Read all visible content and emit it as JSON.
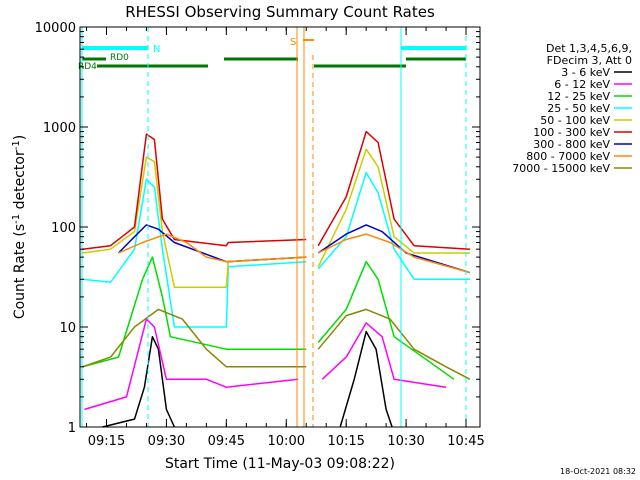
{
  "chart_data": {
    "type": "line",
    "title": "RHESSI Observing Summary Count Rates",
    "xlabel": "Start Time (11-May-03 09:08:22)",
    "ylabel": "Count Rate (s",
    "ylabel_sup1": "-1",
    "ylabel_mid": " detector",
    "ylabel_sup2": "-1",
    "ylabel_end": ")",
    "y_scale": "log",
    "ylim": [
      1,
      10000
    ],
    "xlim": [
      "09:08:22",
      "10:48:30"
    ],
    "x_ticks": [
      "09:15",
      "09:30",
      "09:45",
      "10:00",
      "10:15",
      "10:30",
      "10:45"
    ],
    "y_ticks": [
      "1",
      "10",
      "100",
      "1000",
      "10000"
    ],
    "legend": {
      "placement": "right",
      "header": [
        "Det 1,3,4,5,6,9,",
        "FDecim 3, Att 0"
      ],
      "entries": [
        {
          "label": "3 - 6 keV",
          "color": "#000000"
        },
        {
          "label": "6 - 12 keV",
          "color": "#ff00ff"
        },
        {
          "label": "12 - 25 keV",
          "color": "#00dd00"
        },
        {
          "label": "25 - 50 keV",
          "color": "#00ffff"
        },
        {
          "label": "50 - 100 keV",
          "color": "#cccc00"
        },
        {
          "label": "100 - 300 keV",
          "color": "#dd0000"
        },
        {
          "label": "300 - 800 keV",
          "color": "#0000cc"
        },
        {
          "label": "800 - 7000 keV",
          "color": "#ff8800"
        },
        {
          "label": "7000 - 15000 keV",
          "color": "#888800"
        }
      ]
    },
    "annotations": {
      "flags": [
        "N",
        "RD0",
        "RD4",
        "S"
      ],
      "footer": "18-Oct-2021 08:32"
    },
    "series": [
      {
        "color": "#000000",
        "points": [
          [
            "09:14:00",
            1
          ],
          [
            "09:22:00",
            1.2
          ],
          [
            "09:24:30",
            2.5
          ],
          [
            "09:26:30",
            8
          ],
          [
            "09:28:00",
            6
          ],
          [
            "09:30:00",
            1.5
          ],
          [
            "09:32:00",
            1
          ]
        ]
      },
      {
        "color": "#000000",
        "points": [
          [
            "10:13:30",
            1
          ],
          [
            "10:17:00",
            3
          ],
          [
            "10:20:00",
            9
          ],
          [
            "10:22:30",
            6
          ],
          [
            "10:25:00",
            1.5
          ],
          [
            "10:26:30",
            1
          ]
        ]
      },
      {
        "color": "#ff00ff",
        "points": [
          [
            "09:09:30",
            1.5
          ],
          [
            "09:20:00",
            2
          ],
          [
            "09:25:00",
            12
          ],
          [
            "09:27:00",
            10
          ],
          [
            "09:30:00",
            3
          ],
          [
            "09:40:00",
            3
          ],
          [
            "09:45:00",
            2.5
          ],
          [
            "10:03:00",
            3
          ]
        ]
      },
      {
        "color": "#ff00ff",
        "points": [
          [
            "10:09:00",
            3
          ],
          [
            "10:15:00",
            5
          ],
          [
            "10:20:00",
            11
          ],
          [
            "10:24:00",
            8
          ],
          [
            "10:27:00",
            3
          ],
          [
            "10:40:00",
            2.5
          ]
        ]
      },
      {
        "color": "#00dd00",
        "points": [
          [
            "09:09:00",
            4
          ],
          [
            "09:18:00",
            5
          ],
          [
            "09:24:00",
            30
          ],
          [
            "09:26:30",
            50
          ],
          [
            "09:29:00",
            20
          ],
          [
            "09:31:00",
            8
          ],
          [
            "09:45:00",
            6
          ],
          [
            "10:05:00",
            6
          ]
        ]
      },
      {
        "color": "#00dd00",
        "points": [
          [
            "10:08:00",
            7
          ],
          [
            "10:15:00",
            15
          ],
          [
            "10:20:00",
            45
          ],
          [
            "10:23:00",
            30
          ],
          [
            "10:27:00",
            8
          ],
          [
            "10:42:00",
            3
          ]
        ]
      },
      {
        "color": "#00ffff",
        "points": [
          [
            "09:09:00",
            30
          ],
          [
            "09:16:00",
            28
          ],
          [
            "09:22:00",
            60
          ],
          [
            "09:25:00",
            300
          ],
          [
            "09:27:00",
            250
          ],
          [
            "09:29:00",
            60
          ],
          [
            "09:32:00",
            10
          ],
          [
            "09:45:00",
            10
          ],
          [
            "09:45:30",
            40
          ],
          [
            "10:05:00",
            45
          ]
        ]
      },
      {
        "color": "#00ffff",
        "points": [
          [
            "10:08:00",
            38
          ],
          [
            "10:15:00",
            80
          ],
          [
            "10:20:00",
            350
          ],
          [
            "10:23:00",
            220
          ],
          [
            "10:27:00",
            60
          ],
          [
            "10:32:00",
            30
          ],
          [
            "10:46:00",
            30
          ]
        ]
      },
      {
        "color": "#cccc00",
        "points": [
          [
            "09:09:00",
            55
          ],
          [
            "09:16:00",
            60
          ],
          [
            "09:22:00",
            90
          ],
          [
            "09:25:00",
            500
          ],
          [
            "09:27:00",
            450
          ],
          [
            "09:29:00",
            90
          ],
          [
            "09:32:00",
            25
          ],
          [
            "09:45:00",
            25
          ],
          [
            "09:45:30",
            45
          ],
          [
            "10:05:00",
            50
          ]
        ]
      },
      {
        "color": "#cccc00",
        "points": [
          [
            "10:08:00",
            40
          ],
          [
            "10:15:00",
            150
          ],
          [
            "10:20:00",
            600
          ],
          [
            "10:23:00",
            400
          ],
          [
            "10:27:00",
            80
          ],
          [
            "10:32:00",
            55
          ],
          [
            "10:46:00",
            55
          ]
        ]
      },
      {
        "color": "#dd0000",
        "points": [
          [
            "09:09:00",
            60
          ],
          [
            "09:16:00",
            65
          ],
          [
            "09:22:00",
            100
          ],
          [
            "09:25:00",
            850
          ],
          [
            "09:27:00",
            750
          ],
          [
            "09:29:00",
            120
          ],
          [
            "09:32:00",
            75
          ],
          [
            "09:45:00",
            65
          ],
          [
            "09:45:30",
            70
          ],
          [
            "10:05:00",
            75
          ]
        ]
      },
      {
        "color": "#dd0000",
        "points": [
          [
            "10:08:00",
            65
          ],
          [
            "10:15:00",
            200
          ],
          [
            "10:20:00",
            900
          ],
          [
            "10:23:00",
            700
          ],
          [
            "10:27:00",
            120
          ],
          [
            "10:32:00",
            65
          ],
          [
            "10:46:00",
            60
          ]
        ]
      },
      {
        "color": "#0000cc",
        "points": [
          [
            "09:18:00",
            55
          ],
          [
            "09:22:00",
            80
          ],
          [
            "09:25:00",
            105
          ],
          [
            "09:28:00",
            95
          ],
          [
            "09:32:00",
            70
          ],
          [
            "09:45:00",
            45
          ],
          [
            "10:05:00",
            50
          ]
        ]
      },
      {
        "color": "#0000cc",
        "points": [
          [
            "10:08:00",
            55
          ],
          [
            "10:15:00",
            85
          ],
          [
            "10:20:00",
            105
          ],
          [
            "10:24:00",
            90
          ],
          [
            "10:30:00",
            55
          ],
          [
            "10:46:00",
            35
          ]
        ]
      },
      {
        "color": "#ff8800",
        "points": [
          [
            "09:18:00",
            55
          ],
          [
            "09:24:00",
            70
          ],
          [
            "09:30:00",
            85
          ],
          [
            "09:35:00",
            70
          ],
          [
            "09:40:00",
            50
          ],
          [
            "09:45:00",
            45
          ],
          [
            "10:05:00",
            50
          ]
        ]
      },
      {
        "color": "#ff8800",
        "points": [
          [
            "10:08:00",
            55
          ],
          [
            "10:15:00",
            75
          ],
          [
            "10:20:00",
            85
          ],
          [
            "10:26:00",
            70
          ],
          [
            "10:32:00",
            50
          ],
          [
            "10:46:00",
            35
          ]
        ]
      },
      {
        "color": "#888800",
        "points": [
          [
            "09:09:00",
            4
          ],
          [
            "09:16:00",
            5
          ],
          [
            "09:22:00",
            10
          ],
          [
            "09:28:00",
            15
          ],
          [
            "09:34:00",
            12
          ],
          [
            "09:40:00",
            6
          ],
          [
            "09:45:00",
            4
          ],
          [
            "10:05:00",
            4
          ]
        ]
      },
      {
        "color": "#888800",
        "points": [
          [
            "10:08:00",
            6
          ],
          [
            "10:15:00",
            13
          ],
          [
            "10:20:00",
            15
          ],
          [
            "10:26:00",
            12
          ],
          [
            "10:32:00",
            6
          ],
          [
            "10:40:00",
            4
          ],
          [
            "10:46:00",
            3
          ]
        ]
      }
    ]
  }
}
